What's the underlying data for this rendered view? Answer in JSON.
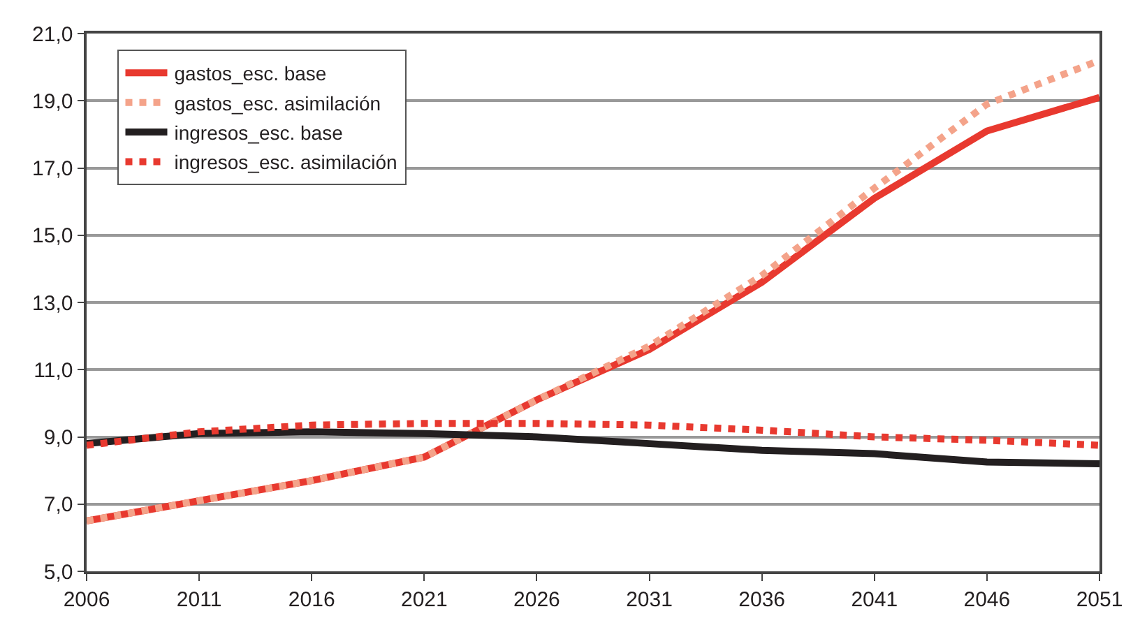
{
  "chart_data": {
    "type": "line",
    "x": [
      2006,
      2011,
      2016,
      2021,
      2026,
      2031,
      2036,
      2041,
      2046,
      2051
    ],
    "xlim": [
      2006,
      2051
    ],
    "xticks": [
      2006,
      2011,
      2016,
      2021,
      2026,
      2031,
      2036,
      2041,
      2046,
      2051
    ],
    "ylim": [
      5,
      21
    ],
    "yticks": [
      {
        "value": 5,
        "label": "5,0"
      },
      {
        "value": 7,
        "label": "7,0"
      },
      {
        "value": 9,
        "label": "9,0"
      },
      {
        "value": 11,
        "label": "11,0"
      },
      {
        "value": 13,
        "label": "13,0"
      },
      {
        "value": 15,
        "label": "15,0"
      },
      {
        "value": 17,
        "label": "17,0"
      },
      {
        "value": 19,
        "label": "19,0"
      },
      {
        "value": 21,
        "label": "21,0"
      }
    ],
    "grid": "y",
    "legend": "top left",
    "marker": "none",
    "series": [
      {
        "name": "gastos_esc. base",
        "color": "#e8392f",
        "line_style": "solid",
        "values": [
          6.5,
          7.1,
          7.7,
          8.4,
          10.1,
          11.6,
          13.6,
          16.1,
          18.1,
          19.1
        ]
      },
      {
        "name": "gastos_esc. asimilación",
        "color": "#f4a38a",
        "line_style": "dotted",
        "values": [
          6.5,
          7.1,
          7.7,
          8.4,
          10.1,
          11.7,
          13.8,
          16.4,
          18.9,
          20.2
        ]
      },
      {
        "name": "ingresos_esc. base",
        "color": "#231f20",
        "line_style": "solid",
        "values": [
          8.8,
          9.1,
          9.15,
          9.1,
          9.0,
          8.8,
          8.6,
          8.5,
          8.25,
          8.2
        ]
      },
      {
        "name": "ingresos_esc. asimilación",
        "color": "#e8392f",
        "line_style": "dotted",
        "values": [
          8.75,
          9.15,
          9.35,
          9.4,
          9.4,
          9.35,
          9.2,
          9.0,
          8.9,
          8.75
        ]
      }
    ]
  }
}
